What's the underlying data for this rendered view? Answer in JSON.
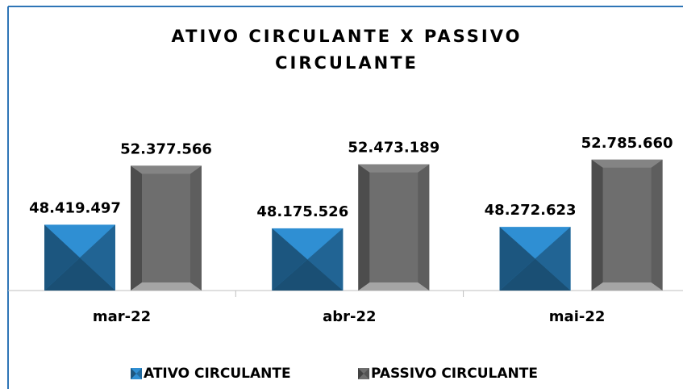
{
  "chart_data": {
    "type": "bar",
    "title_lines": [
      "ATIVO CIRCULANTE X PASSIVO",
      "CIRCULANTE"
    ],
    "categories": [
      "mar-22",
      "abr-22",
      "mai-22"
    ],
    "series": [
      {
        "name": "ATIVO CIRCULANTE",
        "color": "#2f8fd3",
        "values": [
          48419497,
          48175526,
          48272623
        ],
        "value_labels": [
          "48.419.497",
          "48.175.526",
          "48.272.623"
        ]
      },
      {
        "name": "PASSIVO CIRCULANTE",
        "color": "#6e6e6e",
        "values": [
          52377566,
          52473189,
          52785660
        ],
        "value_labels": [
          "52.377.566",
          "52.473.189",
          "52.785.660"
        ]
      }
    ],
    "ylim": [
      44000000,
      57000000
    ],
    "legend": "bottom"
  }
}
